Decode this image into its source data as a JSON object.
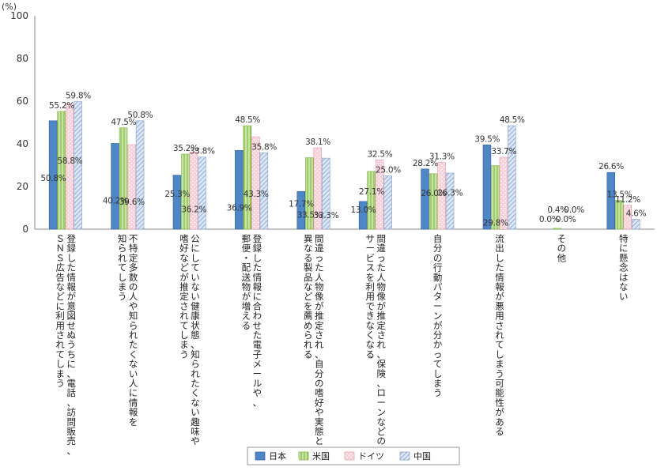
{
  "chart_data": {
    "type": "bar",
    "unit": "(%)",
    "ylim": [
      0,
      100
    ],
    "yticks": [
      0,
      20,
      40,
      60,
      80,
      100
    ],
    "grid": false,
    "legend_position": "bottom",
    "categories": [
      [
        "登録した情報が意図せぬうちに、電話、訪問販売、",
        "ＳＮＳ広告などに利用されてしまう"
      ],
      [
        "不特定多数の人や知られたくない人に情報を",
        "知られてしまう"
      ],
      [
        "公にしていない健康状態、知られたくない趣味や",
        "嗜好などが推定されてしまう"
      ],
      [
        "登録した情報に合わせた電子メールや、",
        "郵便・配送物が増える"
      ],
      [
        "間違った人物像が推定され、自分の嗜好や実態と",
        "異なる製品などを薦められる"
      ],
      [
        "間違った人物像が推定され、保険、ローンなどの",
        "サービスを利用できなくなる"
      ],
      [
        "自分の行動パターンが分かってしまう"
      ],
      [
        "流出した情報が悪用されてしまう可能性がある"
      ],
      [
        "その他"
      ],
      [
        "特に懸念はない"
      ]
    ],
    "series": [
      {
        "name": "日本",
        "values": [
          50.8,
          40.2,
          25.3,
          36.9,
          17.7,
          13.0,
          28.2,
          39.5,
          0.0,
          26.6
        ],
        "labels": [
          "50.8%",
          "40.2%",
          "25.3%",
          "36.9%",
          "17.7%",
          "13.0%",
          "28.2%",
          "39.5%",
          "0.0%",
          "26.6%"
        ]
      },
      {
        "name": "米国",
        "values": [
          55.2,
          47.5,
          35.2,
          48.5,
          33.5,
          27.1,
          26.0,
          29.8,
          0.4,
          13.5
        ],
        "labels": [
          "55.2%",
          "47.5%",
          "35.2%",
          "48.5%",
          "33.5%",
          "27.1%",
          "26.0%",
          "29.8%",
          "0.4%",
          "13.5%"
        ]
      },
      {
        "name": "ドイツ",
        "values": [
          58.8,
          39.6,
          36.2,
          43.3,
          38.1,
          32.5,
          31.3,
          33.7,
          0.0,
          11.2
        ],
        "labels": [
          "58.8%",
          "39.6%",
          "36.2%",
          "43.3%",
          "38.1%",
          "32.5%",
          "31.3%",
          "33.7%",
          "0.0%",
          "11.2%"
        ]
      },
      {
        "name": "中国",
        "values": [
          59.8,
          50.8,
          33.8,
          35.8,
          33.3,
          25.0,
          26.3,
          48.5,
          0.0,
          4.6
        ],
        "labels": [
          "59.8%",
          "50.8%",
          "33.8%",
          "35.8%",
          "33.3%",
          "25.0%",
          "26.3%",
          "48.5%",
          "0.0%",
          "4.6%"
        ]
      }
    ],
    "colors": {
      "japan": "#4f86c6",
      "japan_edge": "#2f5f9a",
      "usa": "#c6e3a0",
      "usa_line": "#7cb342",
      "germany": "#f7d0d8",
      "germany_dot": "#ffffff",
      "china": "#dde6f4",
      "china_line": "#7f9fd3",
      "axis": "#888888"
    }
  }
}
